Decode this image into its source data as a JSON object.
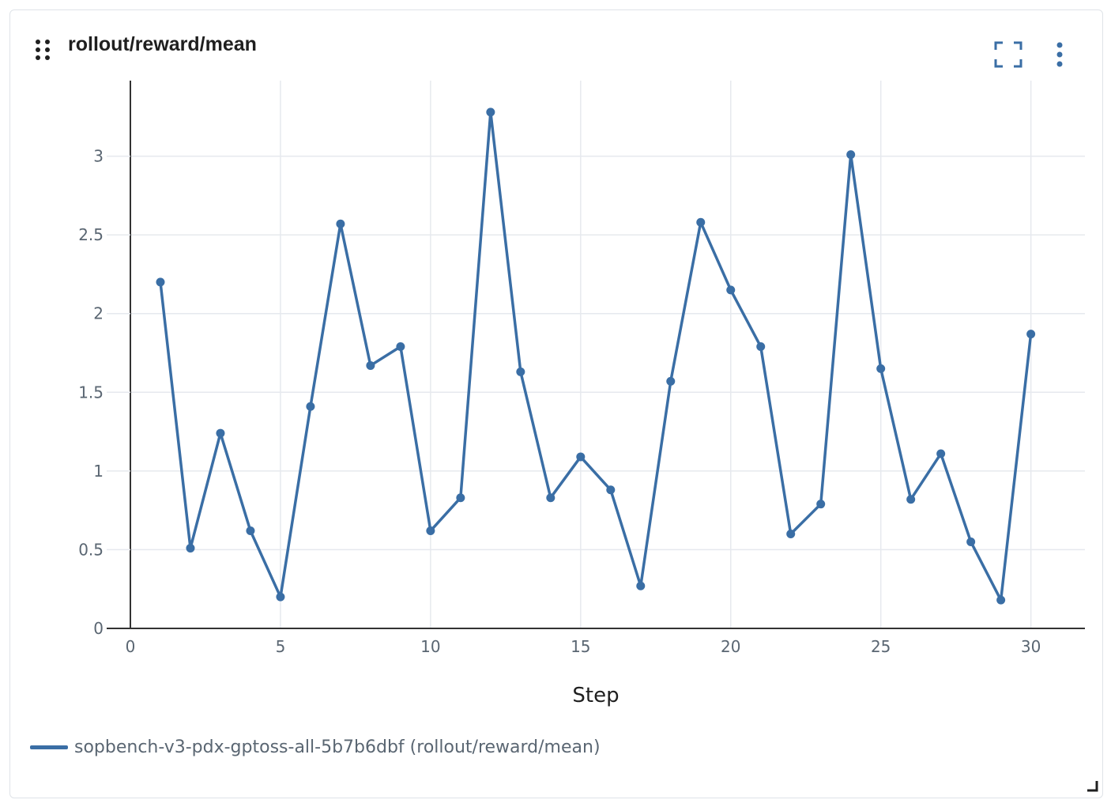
{
  "panel": {
    "title": "rollout/reward/mean",
    "icons": {
      "drag": "drag-handle-icon",
      "fullscreen": "fullscreen-icon",
      "menu": "more-vertical-icon",
      "resize": "resize-corner-icon"
    }
  },
  "colors": {
    "series": "#3a6ea5",
    "grid": "#e6e9ee",
    "axis": "#333333",
    "tick_text": "#5a6672",
    "title_text": "#1f1f1f"
  },
  "chart_data": {
    "type": "line",
    "xlabel": "Step",
    "ylabel": "",
    "xlim": [
      0,
      31.8
    ],
    "ylim": [
      0,
      3.48
    ],
    "xticks": [
      0,
      5,
      10,
      15,
      20,
      25,
      30
    ],
    "yticks": [
      0,
      0.5,
      1,
      1.5,
      2,
      2.5,
      3
    ],
    "grid": true,
    "legend_position": "bottom-left",
    "series": [
      {
        "name": "sopbench-v3-pdx-gptoss-all-5b7b6dbf (rollout/reward/mean)",
        "x": [
          1,
          2,
          3,
          4,
          5,
          6,
          7,
          8,
          9,
          10,
          11,
          12,
          13,
          14,
          15,
          16,
          17,
          18,
          19,
          20,
          21,
          22,
          23,
          24,
          25,
          26,
          27,
          28,
          29,
          30
        ],
        "y": [
          2.2,
          0.51,
          1.24,
          0.62,
          0.2,
          1.41,
          2.57,
          1.67,
          1.79,
          0.62,
          0.83,
          3.28,
          1.63,
          0.83,
          1.09,
          0.88,
          0.27,
          1.57,
          2.58,
          2.15,
          1.79,
          0.6,
          0.79,
          3.01,
          1.65,
          0.82,
          1.11,
          0.55,
          0.18,
          1.87
        ]
      }
    ]
  }
}
